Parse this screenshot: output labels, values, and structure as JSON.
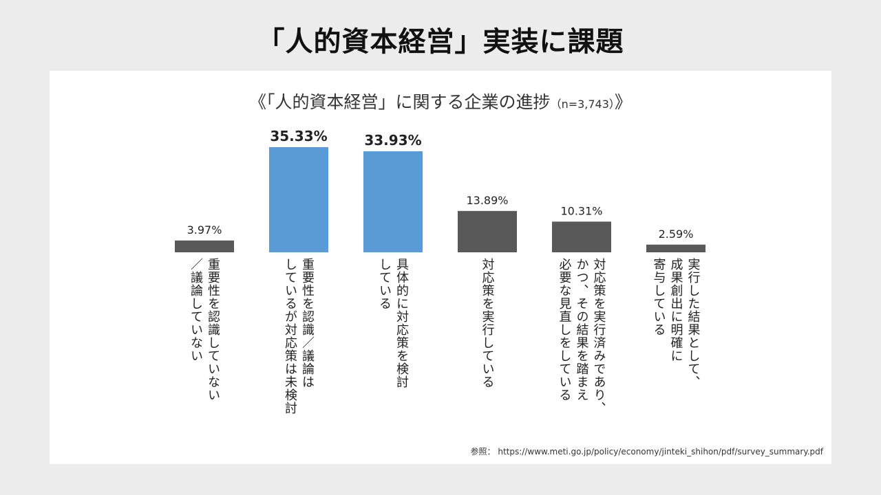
{
  "slide_title": "「人的資本経営」実装に課題",
  "source": "参照： https://www.meti.go.jp/policy/economy/jinteki_shihon/pdf/survey_summary.pdf",
  "chart_data": {
    "type": "bar",
    "title": "《「人的資本経営」に関する企業の進捗",
    "title_note": "（n=3,743）",
    "title_close": "》",
    "ylim": [
      0,
      40
    ],
    "grid": false,
    "categories": [
      [
        "重要性を認識していない",
        "／議論していない"
      ],
      [
        "重要性を認識／議論は",
        "しているが対応策は未検討"
      ],
      [
        "具体的に対応策を検討",
        "している"
      ],
      [
        "対応策を実行している"
      ],
      [
        "対応策を実行済みであり、",
        "かつ、その結果を踏まえ",
        "必要な見直しをしている"
      ],
      [
        "実行した結果として、",
        "成果創出に明確に",
        "寄与している"
      ]
    ],
    "values": [
      3.97,
      35.33,
      33.93,
      13.89,
      10.31,
      2.59
    ],
    "data_labels": [
      "3.97%",
      "35.33%",
      "33.93%",
      "13.89%",
      "10.31%",
      "2.59%"
    ],
    "highlight": [
      false,
      true,
      true,
      false,
      false,
      false
    ],
    "colors": {
      "default": "#595959",
      "highlight": "#5b9bd5"
    }
  }
}
